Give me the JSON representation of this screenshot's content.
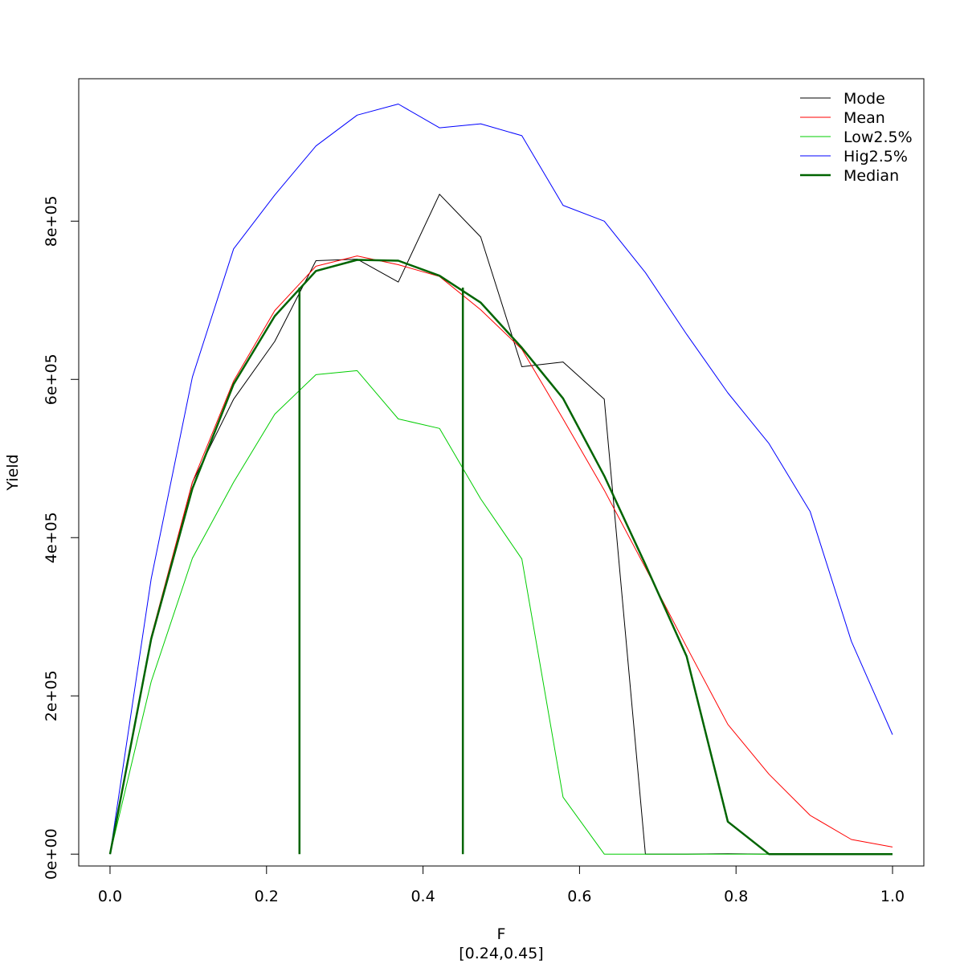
{
  "chart_data": {
    "type": "line",
    "xlabel": "F",
    "xlabel_sub": "[0.24,0.45]",
    "ylabel": "Yield",
    "xlim": [
      -0.04,
      1.04
    ],
    "ylim": [
      -15000,
      980000
    ],
    "x_ticks": [
      {
        "value": 0.0,
        "label": "0.0"
      },
      {
        "value": 0.2,
        "label": "0.2"
      },
      {
        "value": 0.4,
        "label": "0.4"
      },
      {
        "value": 0.6,
        "label": "0.6"
      },
      {
        "value": 0.8,
        "label": "0.8"
      },
      {
        "value": 1.0,
        "label": "1.0"
      }
    ],
    "y_ticks": [
      {
        "value": 0,
        "label": "0e+00"
      },
      {
        "value": 200000,
        "label": "2e+05"
      },
      {
        "value": 400000,
        "label": "4e+05"
      },
      {
        "value": 600000,
        "label": "6e+05"
      },
      {
        "value": 800000,
        "label": "8e+05"
      }
    ],
    "x": [
      0.0,
      0.0526,
      0.1053,
      0.1579,
      0.2105,
      0.2632,
      0.3158,
      0.3684,
      0.4211,
      0.4737,
      0.5263,
      0.5789,
      0.6316,
      0.6842,
      0.7368,
      0.7895,
      0.8421,
      0.8947,
      0.9474,
      1.0
    ],
    "series": [
      {
        "name": "Mode",
        "color": "#000000",
        "width": 1,
        "values": [
          0,
          270000,
          470000,
          575000,
          648000,
          750000,
          752000,
          723000,
          834000,
          780000,
          616000,
          622000,
          575000,
          0,
          0,
          500,
          0,
          0,
          0,
          0
        ]
      },
      {
        "name": "Mean",
        "color": "#ff0000",
        "width": 1,
        "values": [
          0,
          275000,
          470000,
          598000,
          687000,
          743000,
          756000,
          745000,
          730000,
          688000,
          638000,
          550000,
          460000,
          362000,
          262000,
          164000,
          101000,
          49000,
          18500,
          9000
        ]
      },
      {
        "name": "Low2.5%",
        "color": "#00cd00",
        "width": 1,
        "values": [
          0,
          218000,
          374000,
          470000,
          556000,
          606000,
          611000,
          550000,
          538000,
          449000,
          373000,
          72000,
          0,
          0,
          0,
          0,
          0,
          0,
          0,
          0
        ]
      },
      {
        "name": "Hig2.5%",
        "color": "#0000ff",
        "width": 1,
        "values": [
          0,
          348000,
          603000,
          765000,
          833000,
          895000,
          934000,
          948000,
          918000,
          923000,
          908000,
          820000,
          800000,
          735000,
          657000,
          583000,
          519000,
          433000,
          269000,
          151000
        ]
      },
      {
        "name": "Median",
        "color": "#006400",
        "width": 2.5,
        "values": [
          0,
          272000,
          462000,
          594000,
          680000,
          737000,
          751000,
          750000,
          731000,
          697000,
          640000,
          576000,
          478000,
          366000,
          250000,
          41000,
          0,
          0,
          0,
          0
        ]
      }
    ],
    "vlines": [
      {
        "x": 0.2421,
        "y_top": 716000,
        "color": "#006400"
      },
      {
        "x": 0.4509,
        "y_top": 716000,
        "color": "#006400"
      }
    ],
    "legend_position": "top-right",
    "grid": false
  }
}
